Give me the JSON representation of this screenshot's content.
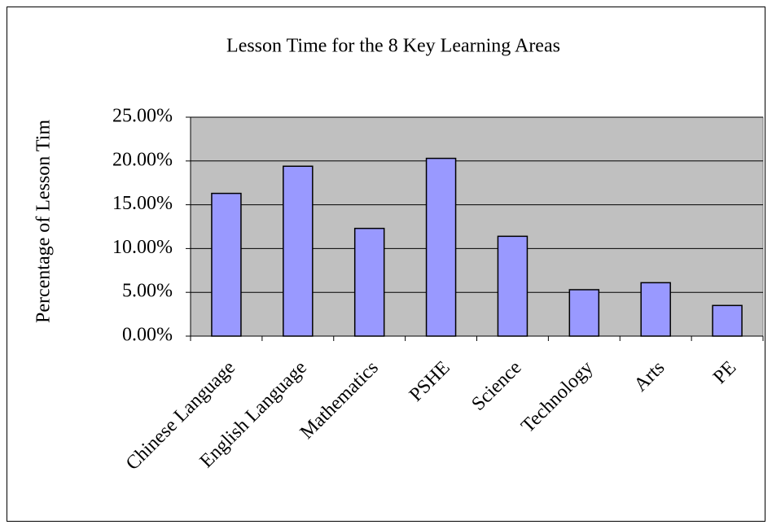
{
  "chart_data": {
    "type": "bar",
    "title": "Lesson Time for the 8 Key Learning Areas",
    "y_label": "Percentage of Lesson Tim",
    "categories": [
      "Chinese Language",
      "English Language",
      "Mathematics",
      "PSHE",
      "Science",
      "Technology",
      "Arts",
      "PE"
    ],
    "values": [
      16.3,
      19.4,
      12.3,
      20.3,
      11.4,
      5.3,
      6.1,
      3.5
    ],
    "color": "#9999ff",
    "ylim": [
      0,
      25
    ],
    "yticks": [
      {
        "value": 0,
        "label": "0.00%"
      },
      {
        "value": 5,
        "label": "5.00%"
      },
      {
        "value": 10,
        "label": "10.00%"
      },
      {
        "value": 15,
        "label": "15.00%"
      },
      {
        "value": 20,
        "label": "20.00%"
      },
      {
        "value": 25,
        "label": "25.00%"
      }
    ],
    "grid": true
  }
}
